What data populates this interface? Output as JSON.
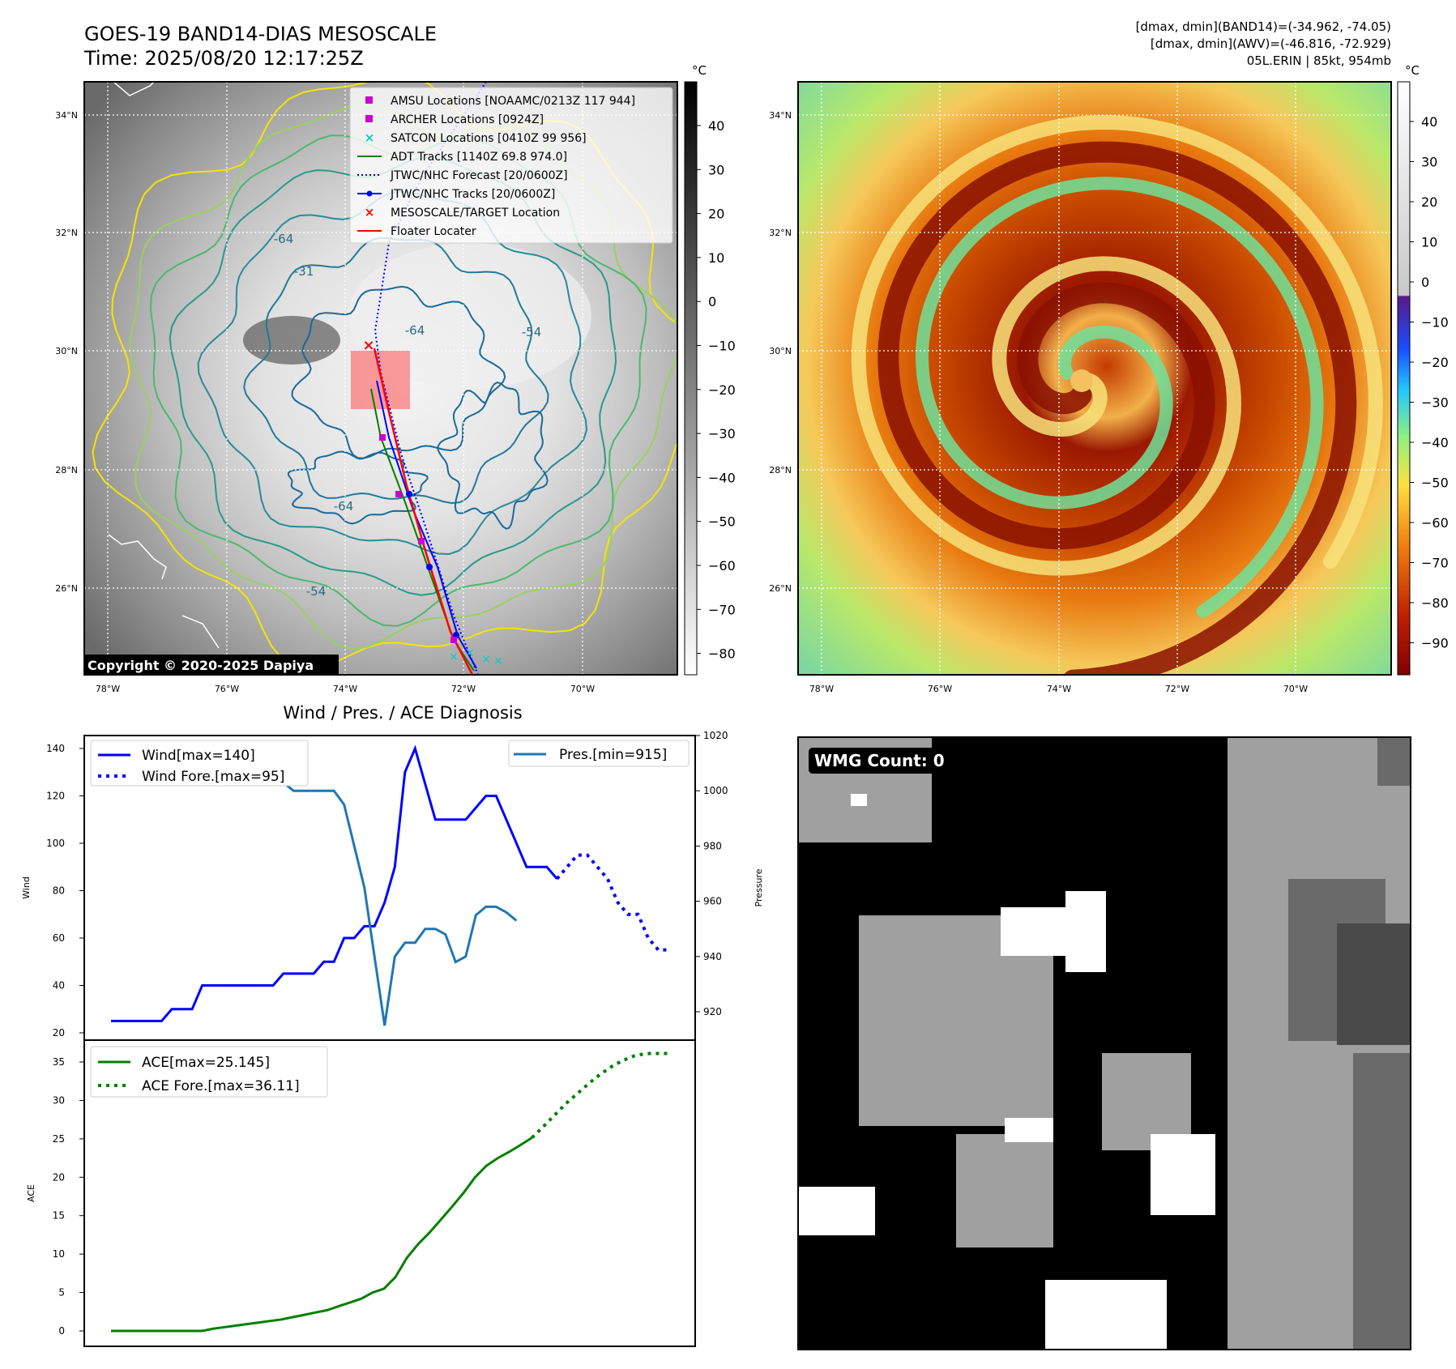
{
  "header": {
    "title_line1": "GOES-19 BAND14-DIAS MESOSCALE",
    "title_line2": "Time: 2025/08/20 12:17:25Z",
    "stats_line1": "[dmax, dmin](BAND14)=(-34.962, -74.05)",
    "stats_line2": "[dmax, dmin](AWV)=(-46.816, -72.929)",
    "stats_line3": "05L.ERIN | 85kt, 954mb"
  },
  "map_axes": {
    "lat_labels": [
      "34°N",
      "32°N",
      "30°N",
      "28°N",
      "26°N"
    ],
    "lon_labels": [
      "78°W",
      "76°W",
      "74°W",
      "72°W",
      "70°W"
    ]
  },
  "left_map": {
    "copyright": "Copyright © 2020-2025 Dapiya",
    "contour_labels": [
      "-64",
      "-64",
      "-64",
      "-54",
      "-54",
      "-31"
    ],
    "legend": [
      {
        "label": "AMSU Locations [NOAAMC/0213Z 117 944]",
        "color": "#cc00cc",
        "marker": "square"
      },
      {
        "label": "ARCHER Locations [0924Z]",
        "color": "#cc00cc",
        "marker": "square"
      },
      {
        "label": "SATCON Locations [0410Z 99 956]",
        "color": "#00cccc",
        "marker": "x"
      },
      {
        "label": "ADT Tracks [1140Z 69.8 974.0]",
        "color": "#008000",
        "marker": "line"
      },
      {
        "label": "JTWC/NHC Forecast [20/0600Z]",
        "color": "#0000ff",
        "marker": "dotted"
      },
      {
        "label": "JTWC/NHC Tracks [20/0600Z]",
        "color": "#0000ff",
        "marker": "line-dot"
      },
      {
        "label": "MESOSCALE/TARGET Location",
        "color": "#ff0000",
        "marker": "x"
      },
      {
        "label": "Floater Locater",
        "color": "#ff0000",
        "marker": "line"
      }
    ],
    "colorbar_unit": "°C",
    "colorbar_ticks": [
      "40",
      "30",
      "20",
      "10",
      "0",
      "−10",
      "−20",
      "−30",
      "−40",
      "−50",
      "−60",
      "−70",
      "−80"
    ]
  },
  "right_map": {
    "colorbar_unit": "°C",
    "colorbar_ticks": [
      "40",
      "30",
      "20",
      "10",
      "0",
      "−10",
      "−20",
      "−30",
      "−40",
      "−50",
      "−60",
      "−70",
      "−80",
      "−90"
    ]
  },
  "wmg": {
    "badge": "WMG Count: 0"
  },
  "chart_data": [
    {
      "type": "line",
      "title": "Wind / Pres. / ACE Diagnosis",
      "ylabel": "Wind",
      "y2label": "Pressure",
      "ylim": [
        20,
        145
      ],
      "y2lim": [
        911,
        1020
      ],
      "yticks": [
        "140",
        "120",
        "100",
        "80",
        "60",
        "40",
        "20"
      ],
      "y2ticks": [
        "1020",
        "1000",
        "980",
        "960",
        "940",
        "920"
      ],
      "legend": [
        "Wind[max=140]",
        "Wind Fore.[max=95]"
      ],
      "legend2": [
        "Pres.[min=915]"
      ],
      "series": [
        {
          "name": "Wind[max=140]",
          "color": "#0000ff",
          "style": "solid",
          "values": [
            25,
            25,
            25,
            25,
            25,
            25,
            30,
            30,
            30,
            40,
            40,
            40,
            40,
            40,
            40,
            40,
            40,
            45,
            45,
            45,
            45,
            50,
            50,
            60,
            60,
            65,
            65,
            75,
            90,
            130,
            140,
            125,
            110,
            110,
            110,
            110,
            115,
            120,
            120,
            110,
            100,
            90,
            90,
            90,
            85
          ]
        },
        {
          "name": "Wind Fore.[max=95]",
          "color": "#0000ff",
          "style": "dotted",
          "values": [
            null,
            null,
            null,
            null,
            null,
            null,
            null,
            null,
            null,
            null,
            null,
            null,
            null,
            null,
            null,
            null,
            null,
            null,
            null,
            null,
            null,
            null,
            null,
            null,
            null,
            null,
            null,
            null,
            null,
            null,
            null,
            null,
            null,
            null,
            null,
            null,
            null,
            null,
            null,
            null,
            null,
            null,
            null,
            null,
            85,
            90,
            95,
            95,
            90,
            85,
            75,
            70,
            70,
            60,
            55,
            55
          ]
        },
        {
          "name": "Pres.[min=915]",
          "color": "#1f77b4",
          "style": "solid",
          "axis": "right",
          "values": [
            1015,
            1015,
            1010,
            1008,
            1008,
            1005,
            1005,
            1005,
            1005,
            1005,
            1005,
            1005,
            1005,
            1005,
            1003,
            1005,
            1003,
            1003,
            1000,
            1000,
            1000,
            1000,
            1000,
            995,
            980,
            965,
            940,
            915,
            940,
            945,
            945,
            950,
            950,
            948,
            938,
            940,
            955,
            958,
            958,
            956,
            953
          ]
        }
      ]
    },
    {
      "type": "line",
      "ylabel": "ACE",
      "ylim": [
        -1,
        37
      ],
      "yticks": [
        "35",
        "30",
        "25",
        "20",
        "15",
        "10",
        "5",
        "0"
      ],
      "legend": [
        "ACE[max=25.145]",
        "ACE Fore.[max=36.11]"
      ],
      "series": [
        {
          "name": "ACE[max=25.145]",
          "color": "#008000",
          "style": "solid",
          "values": [
            0,
            0,
            0,
            0,
            0,
            0,
            0,
            0,
            0,
            0.3,
            0.5,
            0.7,
            0.9,
            1.1,
            1.3,
            1.5,
            1.8,
            2.1,
            2.4,
            2.7,
            3.2,
            3.7,
            4.2,
            5,
            5.5,
            7,
            9.5,
            11.3,
            12.8,
            14.5,
            16.2,
            18,
            20,
            21.5,
            22.5,
            23.3,
            24.2,
            25.145
          ]
        },
        {
          "name": "ACE Fore.[max=36.11]",
          "color": "#008000",
          "style": "dotted",
          "values": [
            null,
            null,
            null,
            null,
            null,
            null,
            null,
            null,
            null,
            null,
            null,
            null,
            null,
            null,
            null,
            null,
            null,
            null,
            null,
            null,
            null,
            null,
            null,
            null,
            null,
            null,
            null,
            null,
            null,
            null,
            null,
            null,
            null,
            null,
            null,
            null,
            null,
            25.145,
            26.6,
            28.1,
            29.6,
            30.9,
            32.2,
            33.4,
            34.4,
            35.2,
            35.8,
            36.1,
            36.11,
            36.11
          ]
        }
      ]
    }
  ]
}
